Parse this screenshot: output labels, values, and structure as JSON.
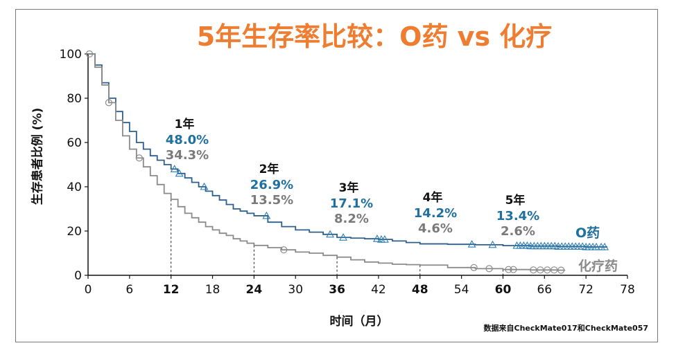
{
  "chart_data": {
    "type": "line",
    "title": "5年生存率比较：O药 vs 化疗",
    "xlabel": "时间（月）",
    "ylabel": "生存患者比例 (%)",
    "xlim": [
      0,
      78
    ],
    "ylim": [
      0,
      100
    ],
    "xticks": [
      0,
      6,
      12,
      18,
      24,
      30,
      36,
      42,
      48,
      54,
      60,
      66,
      72,
      78
    ],
    "xticks_bold": [
      12,
      24,
      36,
      48,
      60
    ],
    "yticks": [
      0,
      20,
      40,
      60,
      80,
      100
    ],
    "grid": false,
    "source": "数据来自CheckMate017和CheckMate057",
    "series": [
      {
        "name": "O药",
        "color": "#2e5f8a",
        "marker": "triangle",
        "x": [
          0,
          1,
          2,
          3,
          4,
          5,
          6,
          7,
          8,
          9,
          10,
          11,
          12,
          13,
          14,
          15,
          16,
          17,
          18,
          19,
          20,
          21,
          22,
          23,
          24,
          26,
          28,
          30,
          32,
          34,
          36,
          38,
          40,
          42,
          44,
          46,
          48,
          52,
          56,
          60,
          64,
          68,
          72,
          75
        ],
        "y": [
          100,
          95,
          87,
          80,
          74,
          69,
          65,
          60,
          57,
          54,
          52,
          50,
          48,
          46,
          44,
          42,
          40,
          38,
          36,
          34,
          32,
          30,
          29,
          28,
          26.9,
          24,
          22,
          20.5,
          19.5,
          18.5,
          17.1,
          16.8,
          16.5,
          16.2,
          15.5,
          14.8,
          14.2,
          14.0,
          13.8,
          13.4,
          13.2,
          13.0,
          12.8,
          12.6
        ]
      },
      {
        "name": "化疗药",
        "color": "#8a8a8a",
        "marker": "circle",
        "x": [
          0,
          1,
          2,
          3,
          4,
          5,
          6,
          7,
          8,
          9,
          10,
          11,
          12,
          13,
          14,
          15,
          16,
          17,
          18,
          19,
          20,
          21,
          22,
          23,
          24,
          26,
          28,
          30,
          32,
          34,
          36,
          38,
          40,
          42,
          44,
          46,
          48,
          52,
          56,
          60,
          64,
          68,
          69
        ],
        "y": [
          100,
          94,
          86,
          78,
          70,
          63,
          57,
          53,
          49,
          45,
          41,
          37,
          34.3,
          31,
          28,
          26,
          24,
          22,
          20.5,
          19,
          18,
          16.5,
          15.5,
          14.5,
          13.5,
          12.5,
          11.5,
          10.5,
          10,
          9,
          8.2,
          7,
          6,
          5.5,
          5,
          4.8,
          4.6,
          3.5,
          3,
          2.6,
          2.4,
          2.3,
          2.3
        ]
      }
    ],
    "censor_o": [
      12.5,
      13.2,
      16.8,
      25.8,
      35,
      36.9,
      41.8,
      42.4,
      42.9,
      55.5,
      58.5,
      62,
      62.5,
      63,
      63.5,
      64,
      64.5,
      65,
      65.5,
      66,
      66.5,
      67,
      67.5,
      68,
      68.5,
      69,
      69.5,
      70,
      70.5,
      71,
      71.5,
      72,
      72.5,
      73,
      73.5,
      74.2,
      74.7
    ],
    "censor_c": [
      0.2,
      3,
      7.4,
      28.3,
      55.8,
      58,
      60.8,
      61.5,
      64.4,
      65.4,
      66.4,
      67.4,
      68.4
    ],
    "annotations": [
      {
        "year": "1年",
        "o": "48.0%",
        "c": "34.3%",
        "month": 12
      },
      {
        "year": "2年",
        "o": "26.9%",
        "c": "13.5%",
        "month": 24
      },
      {
        "year": "3年",
        "o": "17.1%",
        "c": "8.2%",
        "month": 36
      },
      {
        "year": "4年",
        "o": "14.2%",
        "c": "4.6%",
        "month": 48
      },
      {
        "year": "5年",
        "o": "13.4%",
        "c": "2.6%",
        "month": 60
      }
    ],
    "legend_labels": {
      "o": "O药",
      "c": "化疗药"
    }
  }
}
